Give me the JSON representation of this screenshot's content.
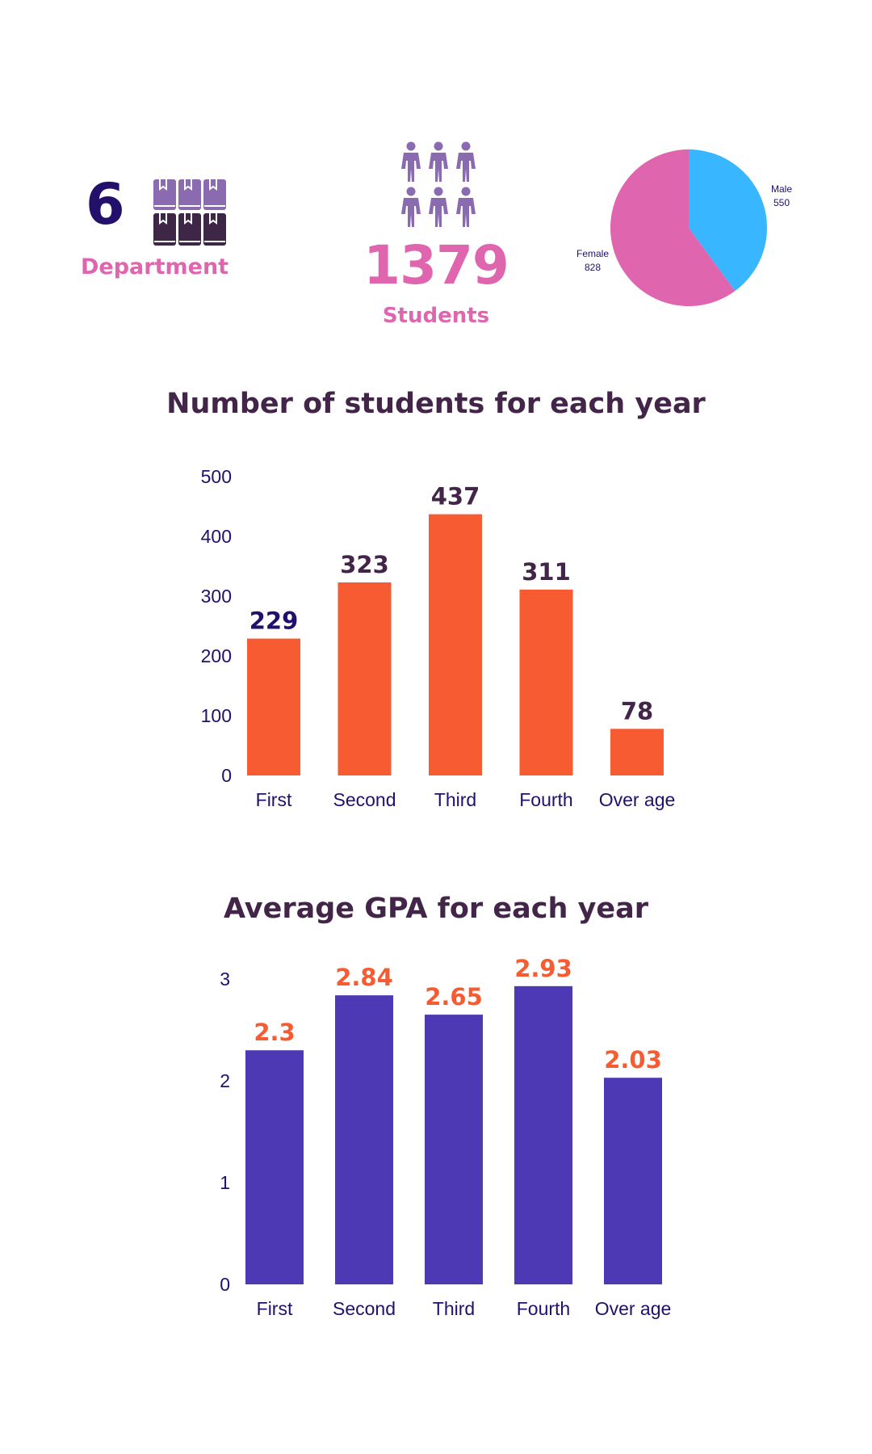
{
  "kpis": {
    "departments": {
      "value": "6",
      "label": "Department",
      "icon": "books-icon"
    },
    "students": {
      "value": "1379",
      "label": "Students",
      "icon": "people-icon"
    }
  },
  "colors": {
    "dark_navy": "#22106b",
    "pink": "#de65ae",
    "purple_light": "#8a6bb0",
    "purple_dark": "#3e2646",
    "orange": "#f65b31",
    "indigo": "#4d39b4",
    "blue": "#38b6ff",
    "title": "#44254a",
    "axis_text": "#22106b"
  },
  "chart_data": [
    {
      "type": "pie",
      "title": "",
      "categories": [
        "Male",
        "Female"
      ],
      "values": [
        550,
        828
      ],
      "colors": [
        "#38b6ff",
        "#de65ae"
      ]
    },
    {
      "type": "bar",
      "title": "Number of students for each year",
      "categories": [
        "First",
        "Second",
        "Third",
        "Fourth",
        "Over age"
      ],
      "values": [
        229,
        323,
        437,
        311,
        78
      ],
      "ylim": [
        0,
        500
      ],
      "yticks": [
        0,
        100,
        200,
        300,
        400,
        500
      ],
      "xlabel": "",
      "ylabel": "",
      "grid": false,
      "bar_color": "#f65b31",
      "label_colors": [
        "#22106b",
        "#44254a",
        "#44254a",
        "#44254a",
        "#44254a"
      ]
    },
    {
      "type": "bar",
      "title": "Average GPA for each year",
      "categories": [
        "First",
        "Second",
        "Third",
        "Fourth",
        "Over age"
      ],
      "values": [
        2.3,
        2.84,
        2.65,
        2.93,
        2.03
      ],
      "ylim": [
        0,
        3
      ],
      "yticks": [
        0,
        1,
        2,
        3
      ],
      "xlabel": "",
      "ylabel": "",
      "grid": false,
      "bar_color": "#4d39b4",
      "label_colors": [
        "#f65b31",
        "#f65b31",
        "#f65b31",
        "#f65b31",
        "#f65b31"
      ]
    }
  ]
}
